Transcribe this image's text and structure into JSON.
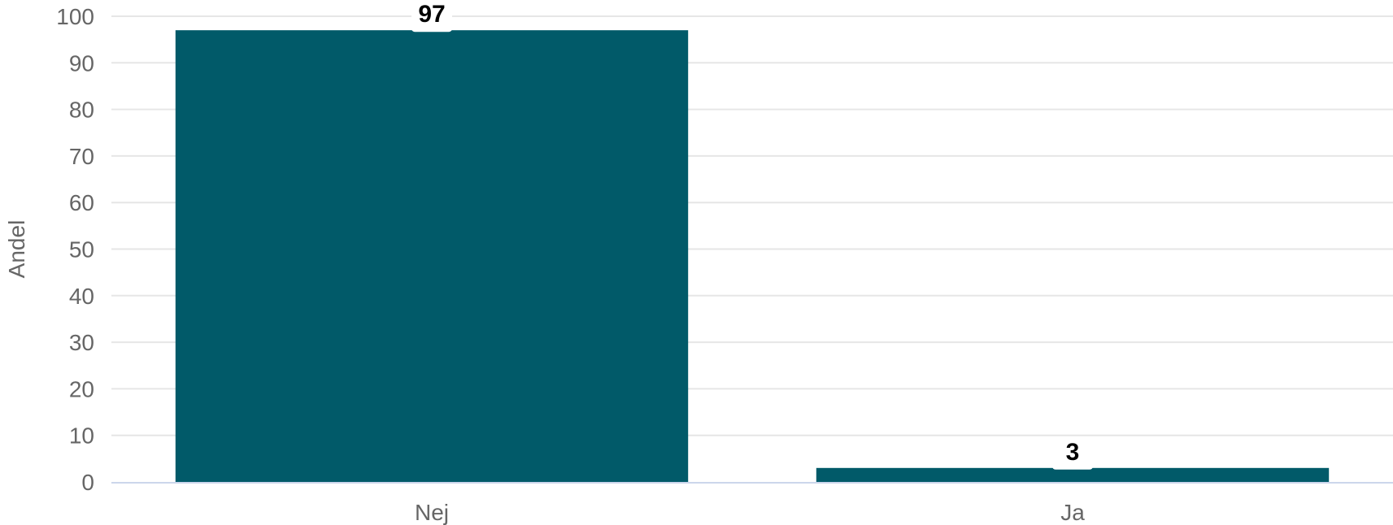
{
  "chart_data": {
    "type": "bar",
    "categories": [
      "Nej",
      "Ja"
    ],
    "values": [
      97,
      3
    ],
    "data_labels": [
      "97",
      "3"
    ],
    "title": "",
    "xlabel": "",
    "ylabel": "Andel",
    "ylim": [
      0,
      100
    ],
    "yticks": [
      0,
      10,
      20,
      30,
      40,
      50,
      60,
      70,
      80,
      90,
      100
    ],
    "grid": true,
    "legend": "none",
    "bar_color": "#015a69",
    "grid_color": "#e6e6e6",
    "axis_color": "#ccd6eb"
  }
}
